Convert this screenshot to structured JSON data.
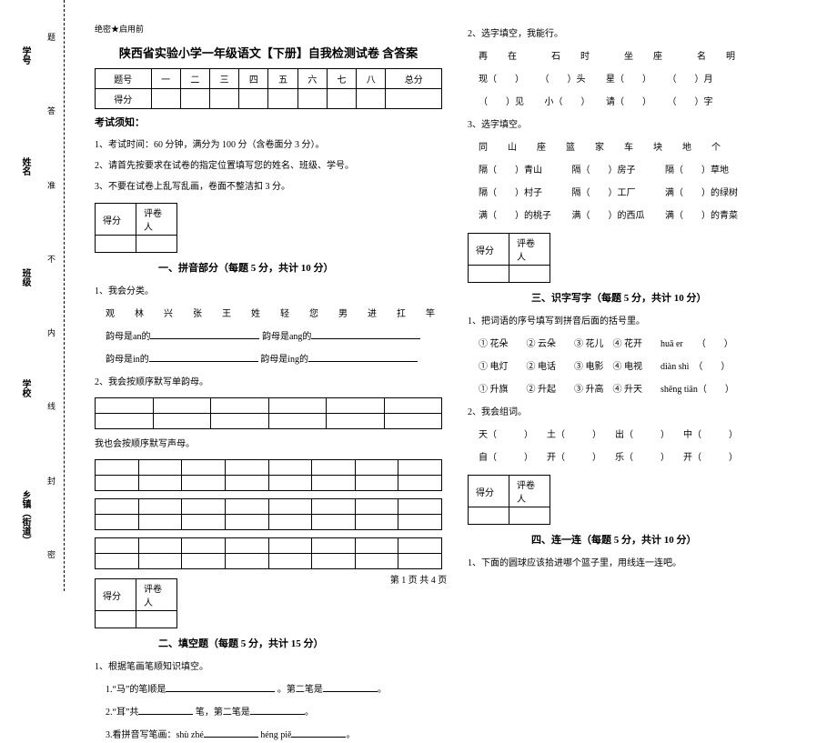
{
  "binding": {
    "labels": [
      "学号",
      "姓名",
      "班级",
      "学校",
      "乡镇（街道）"
    ],
    "marks": [
      "题",
      "答",
      "准",
      "不",
      "内",
      "线",
      "封",
      "密"
    ]
  },
  "header": {
    "secret": "绝密★启用前",
    "title": "陕西省实验小学一年级语文【下册】自我检测试卷 含答案",
    "cols": [
      "题号",
      "一",
      "二",
      "三",
      "四",
      "五",
      "六",
      "七",
      "八",
      "总分"
    ],
    "score_row_label": "得分"
  },
  "notice": {
    "head": "考试须知：",
    "items": [
      "1、考试时间：60 分钟，满分为 100 分（含卷面分 3 分）。",
      "2、请首先按要求在试卷的指定位置填写您的姓名、班级、学号。",
      "3、不要在试卷上乱写乱画，卷面不整洁扣 3 分。"
    ]
  },
  "score_labels": {
    "score": "得分",
    "reviewer": "评卷人"
  },
  "s1": {
    "title": "一、拼音部分（每题 5 分，共计 10 分）",
    "q1_lead": "1、我会分类。",
    "q1_chars": "观　林　兴　张　王　姓　轻　您　男　进　扛　竿",
    "q1_a": "韵母是an的",
    "q1_b": "韵母是ang的",
    "q1_c": "韵母是in的",
    "q1_d": "韵母是ing的",
    "q2": "2、我会按顺序默写单韵母。",
    "q2b": "我也会按顺序默写声母。"
  },
  "s2": {
    "title": "二、填空题（每题 5 分，共计 15 分）",
    "q1": "1、根据笔画笔顺知识填空。",
    "q1a": "1.“马”的笔顺是",
    "q1a2": "。第二笔是",
    "q1b": "2.“耳”共",
    "q1b2": "笔，第二笔是",
    "q1c": "3.看拼音写笔画：shù zhé",
    "q1c2": "héng piě"
  },
  "s2b": {
    "q2": "2、选字填空，我能行。",
    "line1": "再　在　　石　时　　坐　座　　名　明",
    "line2a": "现（　　）",
    "line2b": "（　　）头",
    "line2c": "星（　　）",
    "line2d": "（　　）月",
    "line3a": "（　　）见",
    "line3b": "小（　　）",
    "line3c": "请（　　）",
    "line3d": "（　　）字",
    "q3": "3、选字填空。",
    "line4": "同　山　座　篮　家　车　块　地　个",
    "r1a": "隔（　　）青山",
    "r1b": "隔（　　）房子",
    "r1c": "隔（　　）草地",
    "r2a": "隔（　　）村子",
    "r2b": "隔（　　）工厂",
    "r2c": "满（　　）的绿树",
    "r3a": "满（　　）的桃子",
    "r3b": "满（　　）的西瓜",
    "r3c": "满（　　）的青菜"
  },
  "s3": {
    "title": "三、识字写字（每题 5 分，共计 10 分）",
    "q1": "1、把词语的序号填写到拼音后面的括号里。",
    "r1": "① 花朵　　② 云朵　　③ 花儿　④ 花开　　huā er　　（　　）",
    "r2": "① 电灯　　② 电话　　③ 电影　④ 电视　　diàn shì　（　　）",
    "r3": "① 升旗　　② 升起　　③ 升高　④ 升天　　shēng tiān（　　）",
    "q2": "2、我会组词。",
    "w1": "天（　　　）　　土（　　　）　　出（　　　）　　中（　　　）",
    "w2": "自（　　　）　　开（　　　）　　乐（　　　）　　开（　　　）"
  },
  "s4": {
    "title": "四、连一连（每题 5 分，共计 10 分）",
    "q1": "1、下面的圆球应该拾进哪个篮子里，用线连一连吧。"
  },
  "footer": "第 1 页 共 4 页"
}
